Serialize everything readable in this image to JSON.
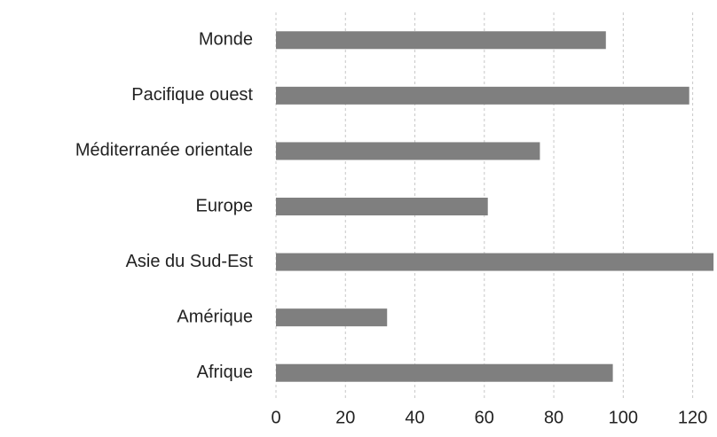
{
  "chart_data": {
    "type": "bar",
    "orientation": "horizontal",
    "categories": [
      "Monde",
      "Pacifique ouest",
      "Méditerranée orientale",
      "Europe",
      "Asie du Sud-Est",
      "Amérique",
      "Afrique"
    ],
    "values": [
      95,
      119,
      76,
      61,
      126,
      32,
      97
    ],
    "color": "#7f7f7f",
    "xlim": [
      0,
      127
    ],
    "xticks": [
      0,
      20,
      40,
      60,
      80,
      100,
      120
    ],
    "grid": true
  }
}
